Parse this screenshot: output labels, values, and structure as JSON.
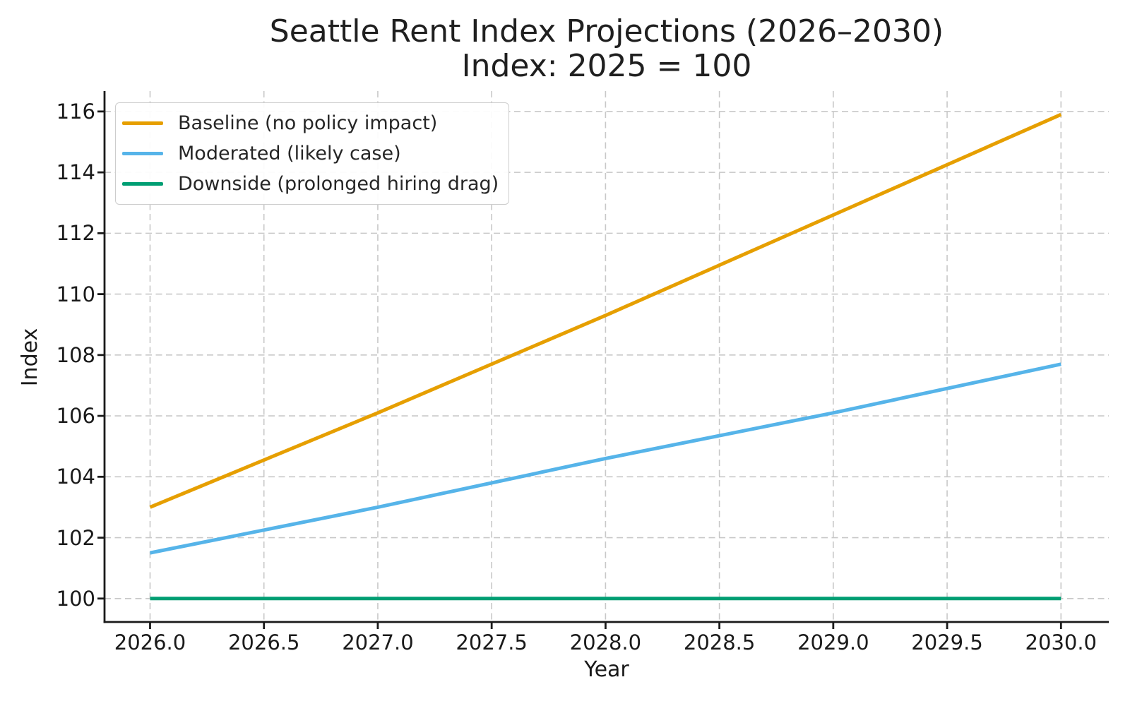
{
  "chart_data": {
    "type": "line",
    "title": "Seattle Rent Index Projections (2026–2030)",
    "subtitle": "Index: 2025 = 100",
    "xlabel": "Year",
    "ylabel": "Index",
    "x": [
      2026,
      2027,
      2028,
      2029,
      2030
    ],
    "series": [
      {
        "name": "Baseline (no policy impact)",
        "color": "#E69F00",
        "values": [
          103.0,
          106.1,
          109.3,
          112.6,
          115.9
        ]
      },
      {
        "name": "Moderated (likely case)",
        "color": "#56B4E9",
        "values": [
          101.5,
          103.0,
          104.6,
          106.1,
          107.7
        ]
      },
      {
        "name": "Downside (prolonged hiring drag)",
        "color": "#009E73",
        "values": [
          100.0,
          100.0,
          100.0,
          100.0,
          100.0
        ]
      }
    ],
    "xlim": [
      2025.8,
      2030.21
    ],
    "ylim": [
      99.23,
      116.67
    ],
    "x_ticks": {
      "values": [
        2026.0,
        2026.5,
        2027.0,
        2027.5,
        2028.0,
        2028.5,
        2029.0,
        2029.5,
        2030.0
      ],
      "labels": [
        "2026.0",
        "2026.5",
        "2027.0",
        "2027.5",
        "2028.0",
        "2028.5",
        "2029.0",
        "2029.5",
        "2030.0"
      ]
    },
    "y_ticks": {
      "values": [
        100,
        102,
        104,
        106,
        108,
        110,
        112,
        114,
        116
      ],
      "labels": [
        "100",
        "102",
        "104",
        "106",
        "108",
        "110",
        "112",
        "114",
        "116"
      ]
    },
    "grid": {
      "show": true,
      "color": "#c8c8c8",
      "dash": "9 5.5"
    },
    "legend_position": "upper-left",
    "axis_color": "#1a1a1a",
    "line_width": 5
  }
}
